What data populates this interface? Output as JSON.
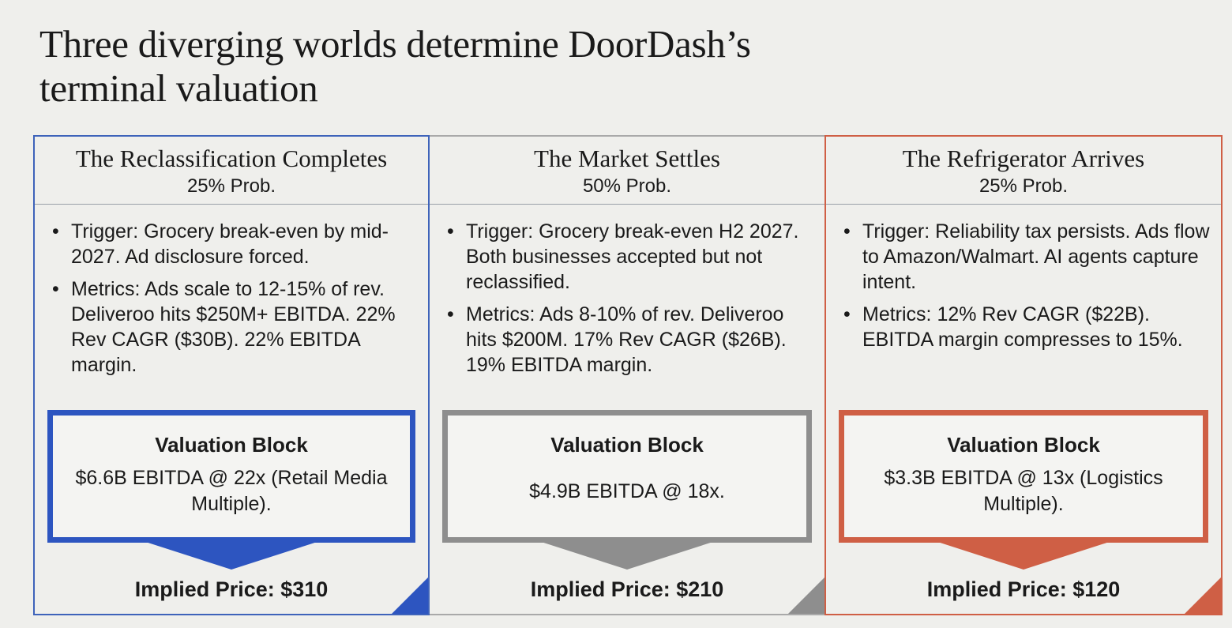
{
  "title": {
    "line1": "Three diverging worlds determine DoorDash’s",
    "line2": "terminal valuation"
  },
  "colors": {
    "blue": "#2d55c0",
    "gray": "#8e8e8e",
    "red": "#cf5f45"
  },
  "scenarios": [
    {
      "title": "The Reclassification Completes",
      "prob": "25% Prob.",
      "trigger_label": "Trigger:",
      "trigger_text": " Grocery break-even by mid-2027. Ad disclosure forced.",
      "metrics_label": "Metrics:",
      "metrics_text": " Ads scale to 12-15% of rev. Deliveroo hits $250M+ EBITDA. 22% Rev CAGR ($30B). 22% EBITDA margin.",
      "valuation_title": "Valuation Block",
      "valuation_text": "$6.6B EBITDA @ 22x (Retail Media Multiple).",
      "implied_price": "Implied Price: $310"
    },
    {
      "title": "The Market Settles",
      "prob": "50% Prob.",
      "trigger_label": "Trigger:",
      "trigger_text": " Grocery break-even H2 2027. Both businesses accepted but not reclassified.",
      "metrics_label": "Metrics:",
      "metrics_text": " Ads 8-10% of rev. Deliveroo hits $200M. 17% Rev CAGR ($26B). 19% EBITDA margin.",
      "valuation_title": "Valuation Block",
      "valuation_text": "$4.9B EBITDA @ 18x.",
      "implied_price": "Implied Price: $210"
    },
    {
      "title": "The Refrigerator Arrives",
      "prob": "25% Prob.",
      "trigger_label": "Trigger:",
      "trigger_text": " Reliability tax persists. Ads flow to Amazon/Walmart. AI agents capture intent.",
      "metrics_label": "Metrics:",
      "metrics_text": " 12% Rev CAGR ($22B). EBITDA margin compresses to 15%.",
      "valuation_title": "Valuation Block",
      "valuation_text": "$3.3B EBITDA @ 13x (Logistics Multiple).",
      "implied_price": "Implied Price: $120"
    }
  ]
}
